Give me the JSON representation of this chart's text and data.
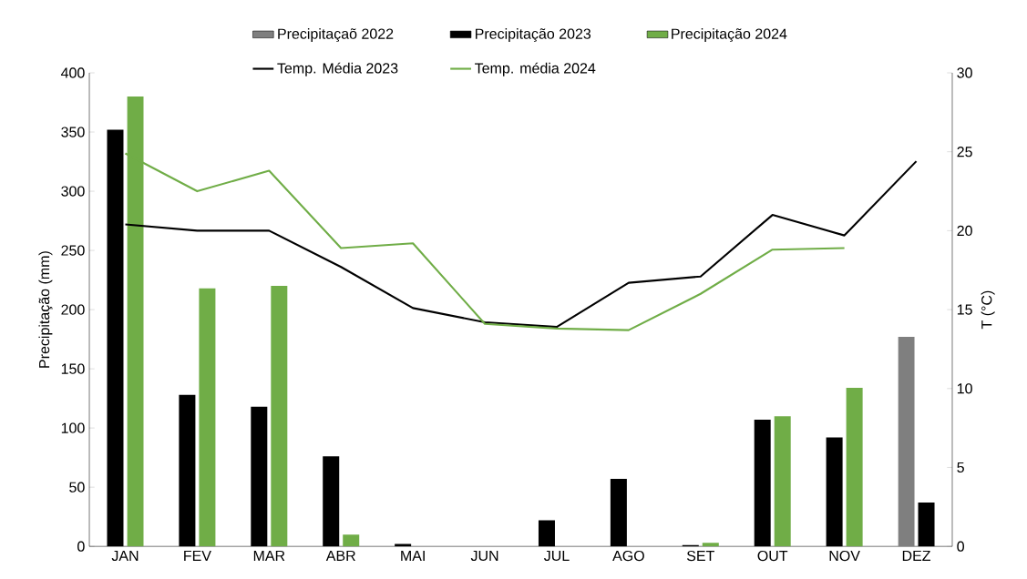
{
  "chart_data": {
    "type": "bar",
    "ylabel": "Precipitação (mm)",
    "y2label": "T (°C)",
    "categories": [
      "JAN",
      "FEV",
      "MAR",
      "ABR",
      "MAI",
      "JUN",
      "JUL",
      "AGO",
      "SET",
      "OUT",
      "NOV",
      "DEZ"
    ],
    "ylim": [
      0,
      400
    ],
    "yticks": [
      0,
      50,
      100,
      150,
      200,
      250,
      300,
      350,
      400
    ],
    "y2lim": [
      0,
      30
    ],
    "y2ticks": [
      0,
      5,
      10,
      15,
      20,
      25,
      30
    ],
    "legend": "top",
    "grid": false,
    "series": [
      {
        "name": "Precipitaçaõ 2022",
        "type": "bar",
        "color": "#7f7f7f",
        "values": [
          null,
          null,
          null,
          null,
          null,
          null,
          null,
          null,
          null,
          null,
          null,
          177
        ]
      },
      {
        "name": "Precipitação 2023",
        "type": "bar",
        "color": "#000000",
        "values": [
          352,
          128,
          118,
          76,
          2,
          0,
          22,
          57,
          1,
          107,
          92,
          37
        ]
      },
      {
        "name": "Precipitação 2024",
        "type": "bar",
        "color": "#70ad47",
        "values": [
          380,
          218,
          220,
          10,
          0,
          0,
          0,
          0,
          3,
          110,
          134,
          null
        ]
      },
      {
        "name": "Temp. Média 2023",
        "type": "line",
        "axis": "y2",
        "color": "#000000",
        "values": [
          20.4,
          20.0,
          20.0,
          17.7,
          15.1,
          14.2,
          13.9,
          16.7,
          17.1,
          21.0,
          19.7,
          24.4
        ]
      },
      {
        "name": "Temp. média 2024",
        "type": "line",
        "axis": "y2",
        "color": "#70ad47",
        "values": [
          24.9,
          22.5,
          23.8,
          18.9,
          19.2,
          14.1,
          13.8,
          13.7,
          16.0,
          18.8,
          18.9,
          null
        ]
      }
    ]
  }
}
